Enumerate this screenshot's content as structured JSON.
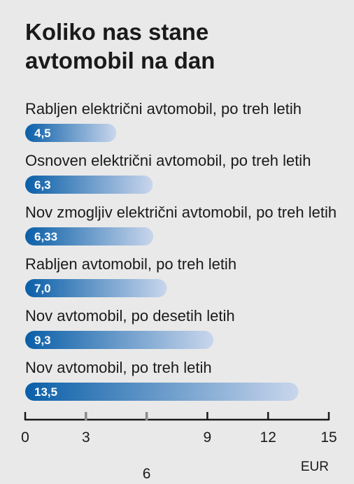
{
  "chart_data": {
    "type": "bar",
    "orientation": "horizontal",
    "title_lines": [
      "Koliko nas stane",
      "avtomobil na dan"
    ],
    "categories": [
      "Rabljen električni avtomobil, po treh letih",
      "Osnoven električni avtomobil, po treh letih",
      "Nov zmogljiv električni avtomobil, po treh letih",
      "Rabljen avtomobil, po treh letih",
      "Nov avtomobil, po desetih letih",
      "Nov avtomobil, po treh letih"
    ],
    "values": [
      4.5,
      6.3,
      6.33,
      7.0,
      9.3,
      13.5
    ],
    "value_labels": [
      "4,5",
      "6,3",
      "6,33",
      "7,0",
      "9,3",
      "13,5"
    ],
    "x_ticks": [
      0,
      3,
      6,
      9,
      12,
      15
    ],
    "x_tick_labels": [
      "0",
      "3",
      "6",
      "9",
      "12",
      "15"
    ],
    "xlim": [
      0,
      15
    ],
    "unit": "EUR",
    "grid": false,
    "colors": {
      "background": "#e9e9e9",
      "bar_dark": "#0a5fa8",
      "bar_light": "#c9d6ec",
      "text": "#1a1a1a",
      "axis": "#1a1a1a",
      "minor_tick": "#8c8c8c"
    }
  }
}
